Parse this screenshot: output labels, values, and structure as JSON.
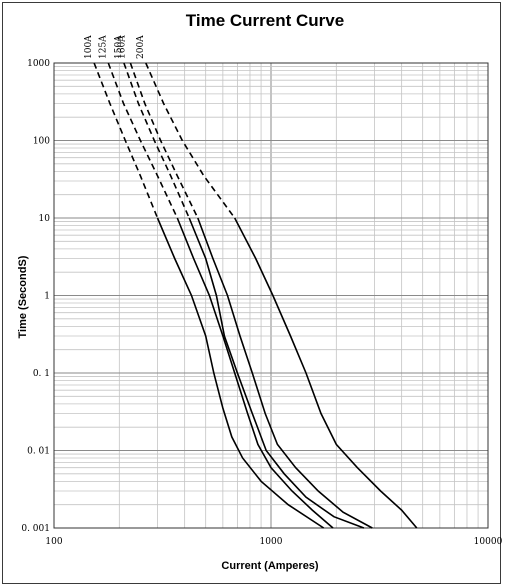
{
  "chart_data": {
    "type": "line",
    "title": "Time Current Curve",
    "xlabel": "Current  (Amperes)",
    "ylabel": "Time (SecondS)",
    "x_scale": "log",
    "y_scale": "log",
    "xlim": [
      100,
      10000
    ],
    "ylim": [
      0.001,
      1000
    ],
    "grid": true,
    "x_ticks": [
      {
        "value": 100,
        "label": "100"
      },
      {
        "value": 1000,
        "label": "1000"
      },
      {
        "value": 10000,
        "label": "10000"
      }
    ],
    "y_ticks": [
      {
        "value": 1000,
        "label": "1000"
      },
      {
        "value": 100,
        "label": "100"
      },
      {
        "value": 10,
        "label": "10"
      },
      {
        "value": 1,
        "label": "1"
      },
      {
        "value": 0.1,
        "label": "0. 1"
      },
      {
        "value": 0.01,
        "label": "0. 01"
      },
      {
        "value": 0.001,
        "label": "0. 001"
      }
    ],
    "series": [
      {
        "name": "100A",
        "dashed": [
          [
            153,
            1000
          ],
          [
            181,
            300
          ],
          [
            213,
            100
          ],
          [
            250,
            35
          ],
          [
            300,
            10
          ]
        ],
        "solid": [
          [
            300,
            10
          ],
          [
            360,
            3
          ],
          [
            430,
            1
          ],
          [
            500,
            0.3
          ],
          [
            545,
            0.1
          ],
          [
            600,
            0.035
          ],
          [
            660,
            0.015
          ],
          [
            740,
            0.008
          ],
          [
            900,
            0.004
          ],
          [
            1200,
            0.002
          ],
          [
            1750,
            0.001
          ]
        ]
      },
      {
        "name": "125A",
        "dashed": [
          [
            178,
            1000
          ],
          [
            209,
            300
          ],
          [
            250,
            100
          ],
          [
            300,
            35
          ],
          [
            370,
            10
          ]
        ],
        "solid": [
          [
            370,
            10
          ],
          [
            440,
            3
          ],
          [
            520,
            1
          ],
          [
            600,
            0.3
          ],
          [
            680,
            0.1
          ],
          [
            780,
            0.03
          ],
          [
            870,
            0.012
          ],
          [
            1000,
            0.006
          ],
          [
            1250,
            0.003
          ],
          [
            1550,
            0.0017
          ],
          [
            1930,
            0.001
          ]
        ]
      },
      {
        "name": "150A",
        "dashed": [
          [
            210,
            1000
          ],
          [
            245,
            300
          ],
          [
            290,
            100
          ],
          [
            345,
            35
          ],
          [
            420,
            10
          ]
        ],
        "solid": [
          [
            420,
            10
          ],
          [
            500,
            3
          ],
          [
            560,
            1
          ],
          [
            610,
            0.3
          ],
          [
            700,
            0.1
          ],
          [
            820,
            0.03
          ],
          [
            950,
            0.01
          ],
          [
            1150,
            0.005
          ],
          [
            1450,
            0.0025
          ],
          [
            1950,
            0.0014
          ],
          [
            2680,
            0.001
          ]
        ]
      },
      {
        "name": "160A",
        "dashed": [
          [
            225,
            1000
          ],
          [
            262,
            300
          ],
          [
            310,
            100
          ],
          [
            370,
            35
          ],
          [
            460,
            10
          ]
        ],
        "solid": [
          [
            460,
            10
          ],
          [
            540,
            3
          ],
          [
            630,
            1
          ],
          [
            720,
            0.3
          ],
          [
            820,
            0.1
          ],
          [
            940,
            0.03
          ],
          [
            1070,
            0.012
          ],
          [
            1300,
            0.006
          ],
          [
            1650,
            0.003
          ],
          [
            2150,
            0.0016
          ],
          [
            2930,
            0.001
          ]
        ]
      },
      {
        "name": "200A",
        "dashed": [
          [
            265,
            1000
          ],
          [
            320,
            300
          ],
          [
            390,
            100
          ],
          [
            490,
            35
          ],
          [
            680,
            10
          ]
        ],
        "solid": [
          [
            680,
            10
          ],
          [
            850,
            3
          ],
          [
            1020,
            1
          ],
          [
            1230,
            0.3
          ],
          [
            1450,
            0.1
          ],
          [
            1700,
            0.03
          ],
          [
            2000,
            0.012
          ],
          [
            2500,
            0.006
          ],
          [
            3200,
            0.003
          ],
          [
            4000,
            0.0017
          ],
          [
            4700,
            0.001
          ]
        ]
      }
    ]
  }
}
